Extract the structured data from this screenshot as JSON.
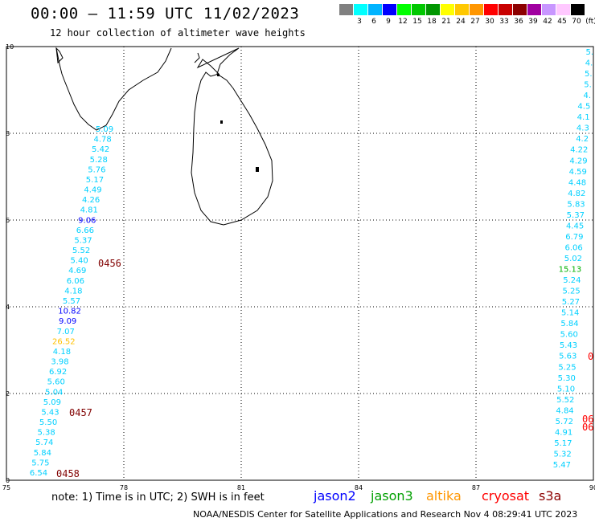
{
  "header": {
    "title": "00:00 – 11:59 UTC 11/02/2023",
    "subtitle": "12 hour collection of altimeter wave heights"
  },
  "scale": {
    "colors": [
      "#808080",
      "#00ffff",
      "#00b4ff",
      "#0000ff",
      "#00ff00",
      "#00c800",
      "#009600",
      "#ffff00",
      "#ffc800",
      "#ff9600",
      "#ff0000",
      "#c80000",
      "#8c0000",
      "#a000a0",
      "#c896ff",
      "#ffc8ff",
      "#000000"
    ],
    "labels": [
      "3",
      "6",
      "9",
      "12",
      "15",
      "18",
      "21",
      "24",
      "27",
      "30",
      "33",
      "36",
      "39",
      "42",
      "45",
      "70",
      "(ft)"
    ]
  },
  "axes": {
    "lon_ticks": [
      "75",
      "78",
      "81",
      "84",
      "87",
      "90"
    ],
    "lat_ticks": [
      "0",
      "2",
      "4",
      "6",
      "8",
      "10"
    ],
    "lon_range": [
      75,
      90
    ],
    "lat_range": [
      0,
      10
    ]
  },
  "track_left": [
    {
      "v": "5.09",
      "c": "#00d0ff"
    },
    {
      "v": "4.78",
      "c": "#00d0ff"
    },
    {
      "v": "5.42",
      "c": "#00d0ff"
    },
    {
      "v": "5.28",
      "c": "#00d0ff"
    },
    {
      "v": "5.76",
      "c": "#00d0ff"
    },
    {
      "v": "5.17",
      "c": "#00d0ff"
    },
    {
      "v": "4.49",
      "c": "#00d0ff"
    },
    {
      "v": "4.26",
      "c": "#00d0ff"
    },
    {
      "v": "4.81",
      "c": "#00d0ff"
    },
    {
      "v": "9.06",
      "c": "#0000ff"
    },
    {
      "v": "6.66",
      "c": "#00d0ff"
    },
    {
      "v": "5.37",
      "c": "#00d0ff"
    },
    {
      "v": "5.52",
      "c": "#00d0ff"
    },
    {
      "v": "5.40",
      "c": "#00d0ff"
    },
    {
      "v": "4.69",
      "c": "#00d0ff"
    },
    {
      "v": "6.06",
      "c": "#00d0ff"
    },
    {
      "v": "4.18",
      "c": "#00d0ff"
    },
    {
      "v": "5.57",
      "c": "#00d0ff"
    },
    {
      "v": "10.82",
      "c": "#0000ff"
    },
    {
      "v": "9.09",
      "c": "#0000ff"
    },
    {
      "v": "7.07",
      "c": "#00d0ff"
    },
    {
      "v": "26.52",
      "c": "#ffc000"
    },
    {
      "v": "4.18",
      "c": "#00d0ff"
    },
    {
      "v": "3.98",
      "c": "#00d0ff"
    },
    {
      "v": "6.92",
      "c": "#00d0ff"
    },
    {
      "v": "5.60",
      "c": "#00d0ff"
    },
    {
      "v": "5.04",
      "c": "#00d0ff"
    },
    {
      "v": "5.09",
      "c": "#00d0ff"
    },
    {
      "v": "5.43",
      "c": "#00d0ff"
    },
    {
      "v": "5.50",
      "c": "#00d0ff"
    },
    {
      "v": "5.38",
      "c": "#00d0ff"
    },
    {
      "v": "5.74",
      "c": "#00d0ff"
    },
    {
      "v": "5.84",
      "c": "#00d0ff"
    },
    {
      "v": "5.75",
      "c": "#00d0ff"
    },
    {
      "v": "6.54",
      "c": "#00d0ff"
    }
  ],
  "track_right": [
    {
      "v": "5.",
      "c": "#00d0ff"
    },
    {
      "v": "4.",
      "c": "#00d0ff"
    },
    {
      "v": "5.",
      "c": "#00d0ff"
    },
    {
      "v": "5.",
      "c": "#00d0ff"
    },
    {
      "v": "4.",
      "c": "#00d0ff"
    },
    {
      "v": "4.5",
      "c": "#00d0ff"
    },
    {
      "v": "4.1",
      "c": "#00d0ff"
    },
    {
      "v": "4.3",
      "c": "#00d0ff"
    },
    {
      "v": "4.2",
      "c": "#00d0ff"
    },
    {
      "v": "4.22",
      "c": "#00d0ff"
    },
    {
      "v": "4.29",
      "c": "#00d0ff"
    },
    {
      "v": "4.59",
      "c": "#00d0ff"
    },
    {
      "v": "4.48",
      "c": "#00d0ff"
    },
    {
      "v": "4.82",
      "c": "#00d0ff"
    },
    {
      "v": "5.83",
      "c": "#00d0ff"
    },
    {
      "v": "5.37",
      "c": "#00d0ff"
    },
    {
      "v": "4.45",
      "c": "#00d0ff"
    },
    {
      "v": "6.79",
      "c": "#00d0ff"
    },
    {
      "v": "6.06",
      "c": "#00d0ff"
    },
    {
      "v": "5.02",
      "c": "#00d0ff"
    },
    {
      "v": "15.13",
      "c": "#00b000"
    },
    {
      "v": "5.24",
      "c": "#00d0ff"
    },
    {
      "v": "5.25",
      "c": "#00d0ff"
    },
    {
      "v": "5.27",
      "c": "#00d0ff"
    },
    {
      "v": "5.14",
      "c": "#00d0ff"
    },
    {
      "v": "5.84",
      "c": "#00d0ff"
    },
    {
      "v": "5.60",
      "c": "#00d0ff"
    },
    {
      "v": "5.43",
      "c": "#00d0ff"
    },
    {
      "v": "5.63",
      "c": "#00d0ff"
    },
    {
      "v": "5.25",
      "c": "#00d0ff"
    },
    {
      "v": "5.30",
      "c": "#00d0ff"
    },
    {
      "v": "5.10",
      "c": "#00d0ff"
    },
    {
      "v": "5.52",
      "c": "#00d0ff"
    },
    {
      "v": "4.84",
      "c": "#00d0ff"
    },
    {
      "v": "5.72",
      "c": "#00d0ff"
    },
    {
      "v": "4.91",
      "c": "#00d0ff"
    },
    {
      "v": "5.17",
      "c": "#00d0ff"
    },
    {
      "v": "5.32",
      "c": "#00d0ff"
    },
    {
      "v": "5.47",
      "c": "#00d0ff"
    }
  ],
  "times": [
    {
      "t": "0456",
      "c": "#800000"
    },
    {
      "t": "0457",
      "c": "#800000"
    },
    {
      "t": "0458",
      "c": "#800000"
    },
    {
      "t": "0",
      "c": "#ff0000"
    },
    {
      "t": "06",
      "c": "#ff0000"
    },
    {
      "t": "06",
      "c": "#ff0000"
    }
  ],
  "footer": {
    "note": "note: 1) Time is in UTC; 2) SWH is in feet",
    "satellites": [
      {
        "name": "jason2",
        "color": "#0000ff"
      },
      {
        "name": "jason3",
        "color": "#00a000"
      },
      {
        "name": "altika",
        "color": "#ff9600"
      },
      {
        "name": "cryosat",
        "color": "#ff0000"
      },
      {
        "name": "s3a",
        "color": "#8c0000"
      }
    ],
    "credit": "NOAA/NESDIS Center for Satellite Applications and Research    Nov  4 08:29:41 UTC 2023"
  }
}
